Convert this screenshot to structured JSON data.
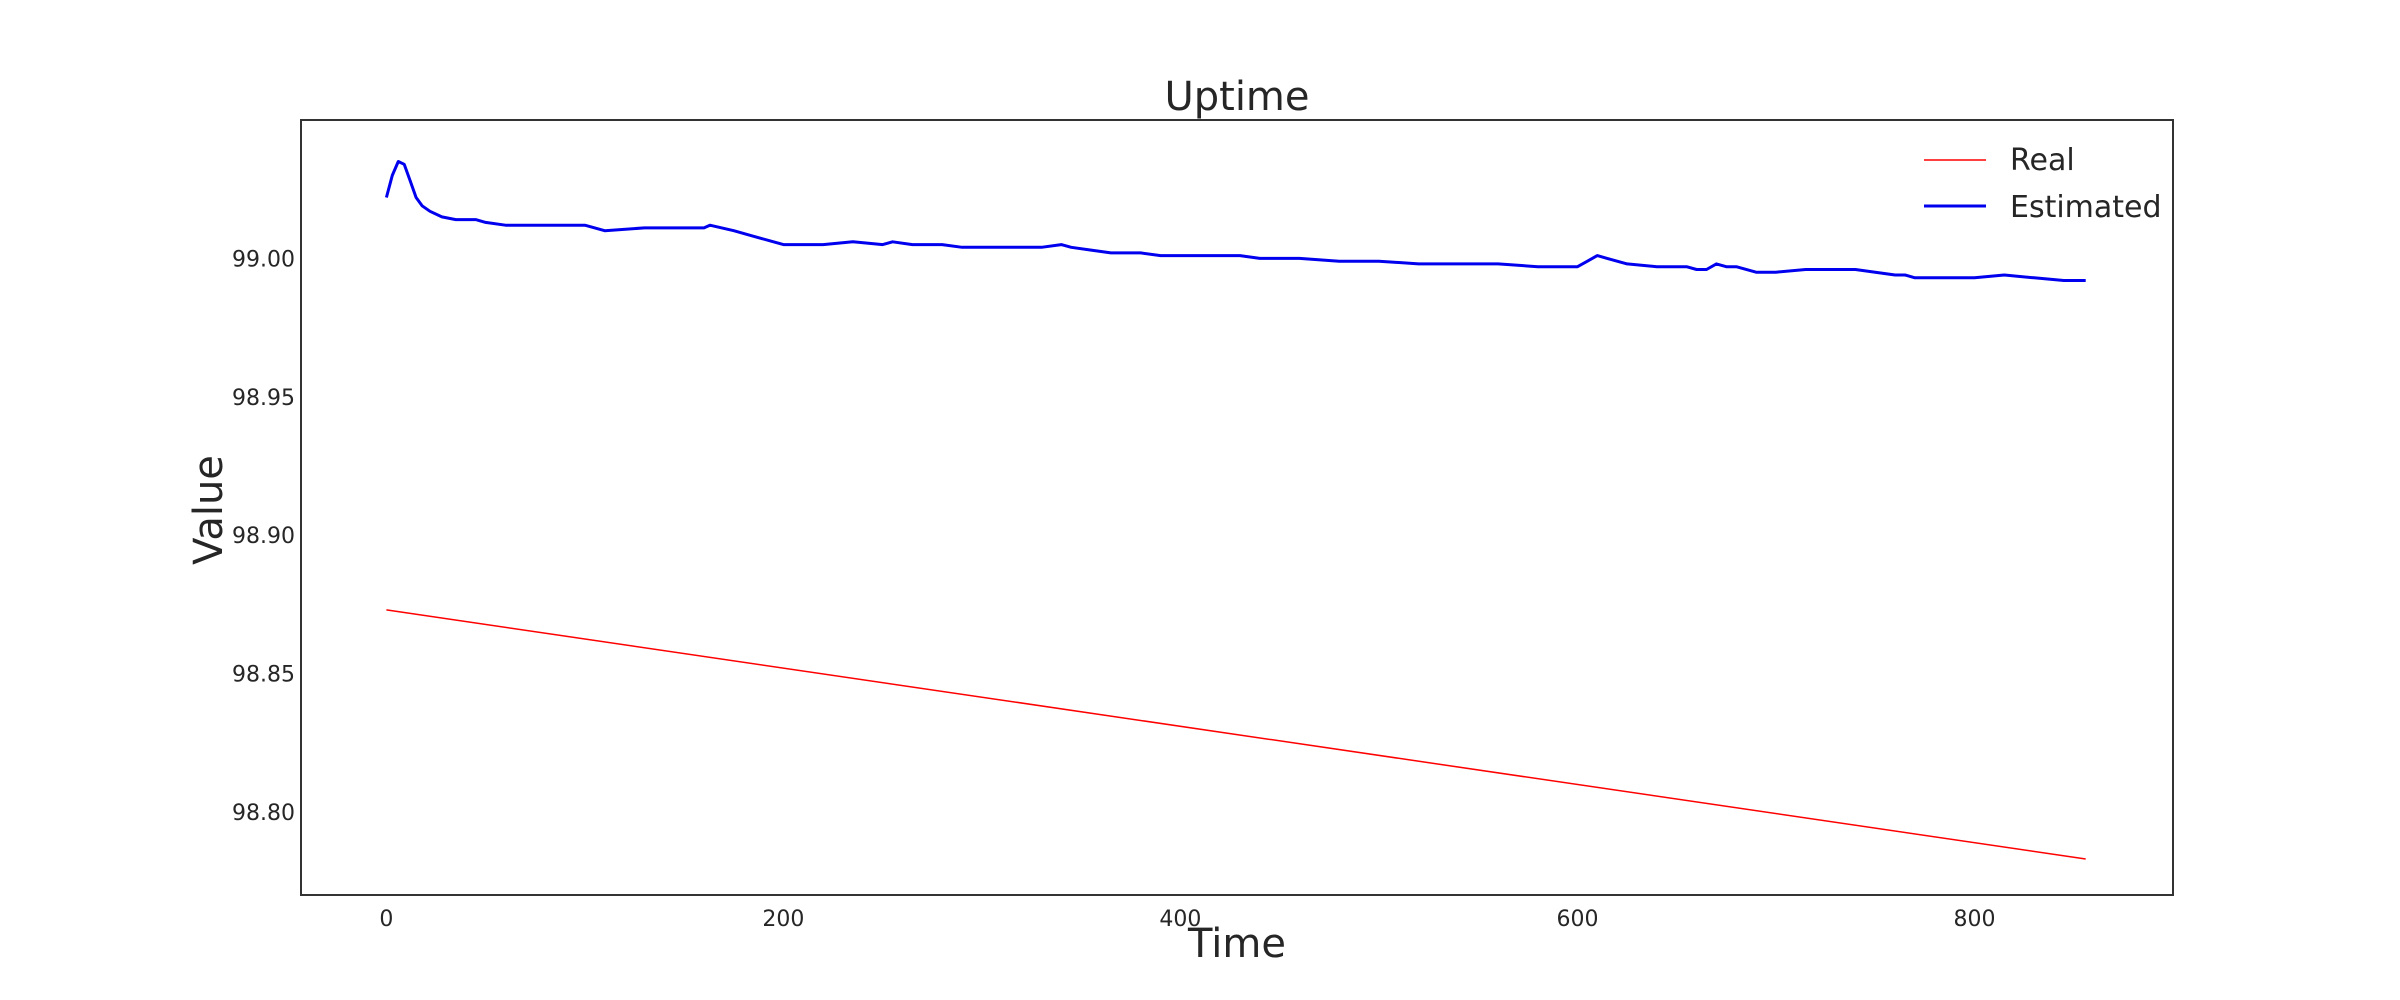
{
  "chart_data": {
    "type": "line",
    "title": "Uptime",
    "xlabel": "Time",
    "ylabel": "Value",
    "xlim": [
      -43,
      900
    ],
    "ylim": [
      98.77,
      99.05
    ],
    "x_ticks": [
      0,
      200,
      400,
      600,
      800
    ],
    "x_tick_labels": [
      "0",
      "200",
      "400",
      "600",
      "800"
    ],
    "y_ticks": [
      98.8,
      98.85,
      98.9,
      98.95,
      99.0
    ],
    "y_tick_labels": [
      "98.80",
      "98.85",
      "98.90",
      "98.95",
      "99.00"
    ],
    "grid": false,
    "legend": "top-right",
    "series": [
      {
        "name": "Real",
        "color": "#ff0000",
        "x": [
          0,
          856
        ],
        "y": [
          98.873,
          98.783
        ]
      },
      {
        "name": "Estimated",
        "color": "#0000ee",
        "x": [
          0,
          3,
          6,
          9,
          12,
          15,
          18,
          22,
          28,
          35,
          45,
          50,
          60,
          80,
          100,
          105,
          110,
          130,
          140,
          150,
          160,
          163,
          175,
          185,
          195,
          200,
          210,
          220,
          235,
          250,
          255,
          265,
          275,
          280,
          290,
          300,
          310,
          320,
          330,
          340,
          345,
          355,
          365,
          375,
          380,
          390,
          400,
          430,
          440,
          460,
          480,
          500,
          520,
          525,
          540,
          560,
          580,
          600,
          605,
          610,
          615,
          625,
          640,
          655,
          660,
          665,
          670,
          675,
          680,
          690,
          700,
          715,
          720,
          740,
          760,
          765,
          770,
          780,
          800,
          815,
          830,
          845,
          856
        ],
        "y": [
          99.022,
          99.03,
          99.035,
          99.034,
          99.028,
          99.022,
          99.019,
          99.017,
          99.015,
          99.014,
          99.014,
          99.013,
          99.012,
          99.012,
          99.012,
          99.011,
          99.01,
          99.011,
          99.011,
          99.011,
          99.011,
          99.012,
          99.01,
          99.008,
          99.006,
          99.005,
          99.005,
          99.005,
          99.006,
          99.005,
          99.006,
          99.005,
          99.005,
          99.005,
          99.004,
          99.004,
          99.004,
          99.004,
          99.004,
          99.005,
          99.004,
          99.003,
          99.002,
          99.002,
          99.002,
          99.001,
          99.001,
          99.001,
          99.0,
          99.0,
          98.999,
          98.999,
          98.998,
          98.998,
          98.998,
          98.998,
          98.997,
          98.997,
          98.999,
          99.001,
          99.0,
          98.998,
          98.997,
          98.997,
          98.996,
          98.996,
          98.998,
          98.997,
          98.997,
          98.995,
          98.995,
          98.996,
          98.996,
          98.996,
          98.994,
          98.994,
          98.993,
          98.993,
          98.993,
          98.994,
          98.993,
          98.992,
          98.992
        ]
      }
    ]
  }
}
